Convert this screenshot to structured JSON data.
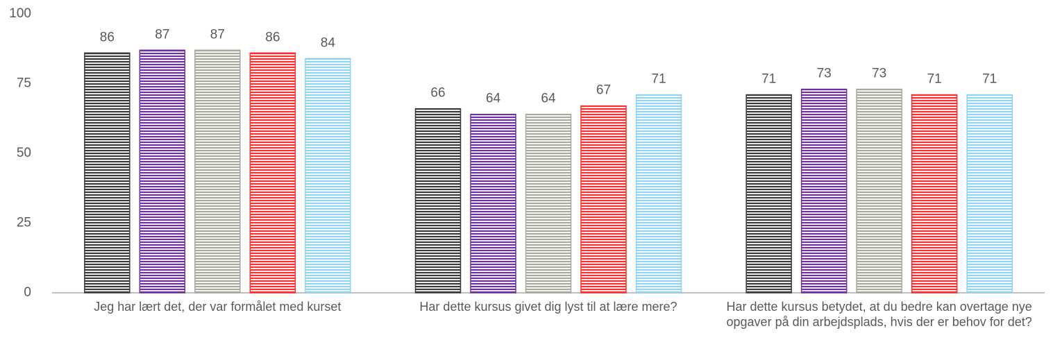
{
  "chart_data": {
    "type": "bar",
    "categories": [
      "Jeg har lært det, der var formålet med kurset",
      "Har dette kursus givet dig lyst til at lære mere?",
      "Har dette kursus betydet, at du bedre kan overtage nye opgaver på din arbejdsplads, hvis der er behov for det?"
    ],
    "series": [
      {
        "color": "#3a3a3a",
        "values": [
          86,
          66,
          71
        ]
      },
      {
        "color": "#7030a0",
        "values": [
          87,
          64,
          73
        ]
      },
      {
        "color": "#a8a89c",
        "values": [
          87,
          64,
          73
        ]
      },
      {
        "color": "#ff2e2e",
        "values": [
          86,
          67,
          71
        ]
      },
      {
        "color": "#8fd3f0",
        "values": [
          84,
          71,
          71
        ]
      }
    ],
    "ylim": [
      0,
      100
    ],
    "yticks": [
      0,
      25,
      50,
      75,
      100
    ],
    "grid": false
  }
}
